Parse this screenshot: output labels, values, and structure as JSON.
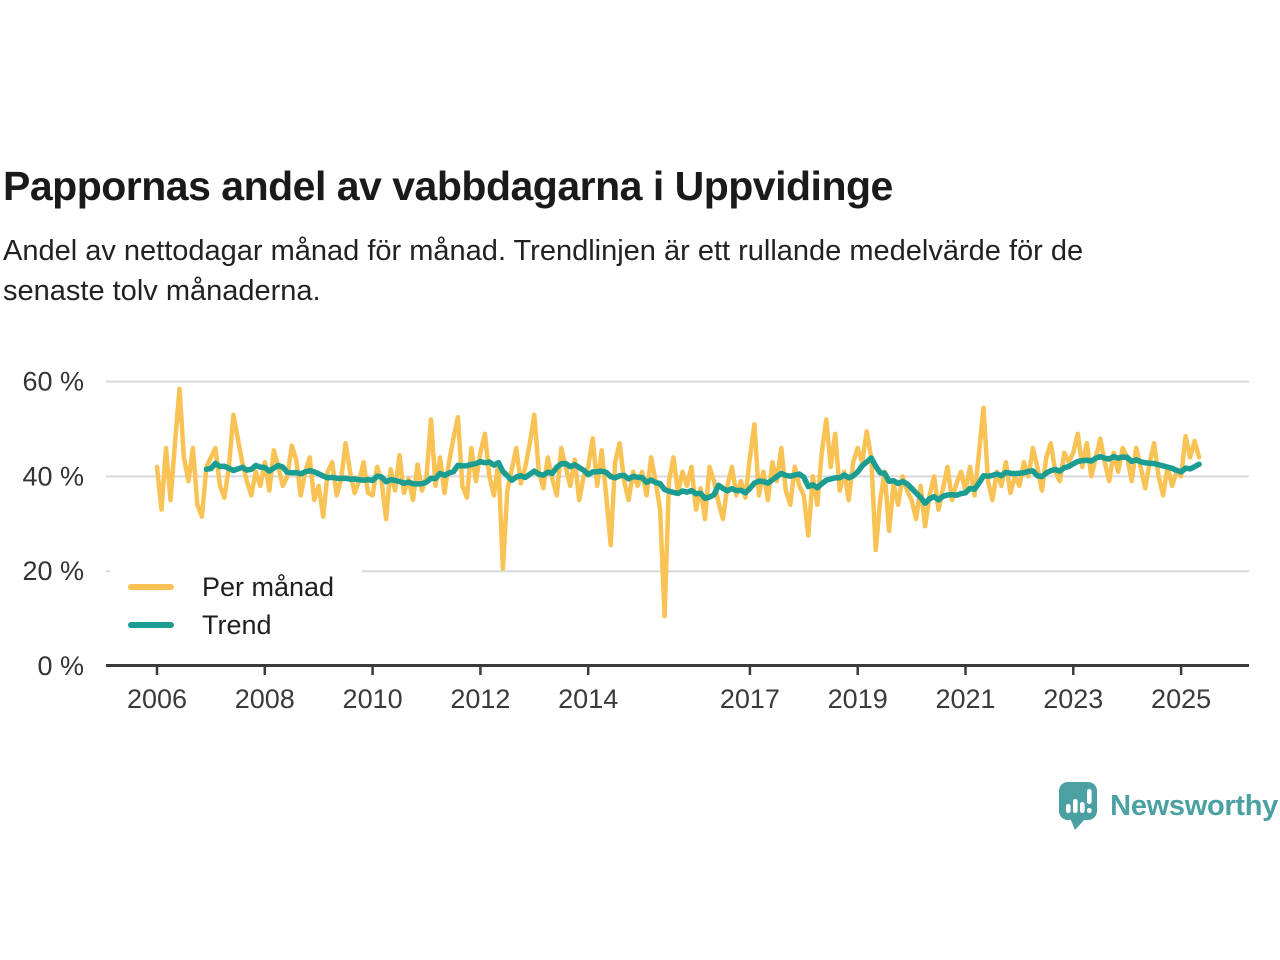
{
  "header": {
    "title": "Pappornas andel av vabbdagarna i Uppvidinge",
    "subtitle_line1": "Andel av nettodagar månad för månad. Trendlinjen är ett rullande medelvärde för de",
    "subtitle_line2": "senaste tolv månaderna."
  },
  "footer": {
    "brand": "Newsworthy"
  },
  "chart_data": {
    "type": "line",
    "title": "Pappornas andel av vabbdagarna i Uppvidinge",
    "subtitle": "Andel av nettodagar månad för månad. Trendlinjen är ett rullande medelvärde för de senaste tolv månaderna.",
    "unit": "%",
    "frequency": "monthly",
    "x_start": "2006-01",
    "x_end": "2025-05",
    "ylim": [
      0,
      62
    ],
    "grid": "horizontal",
    "legend_position": "inside-bottom-left",
    "axis_color": "#3a3a3a",
    "grid_color": "#d9d9d9",
    "label_color": "#333333",
    "yticks": [
      {
        "value": 0,
        "label": "0 %"
      },
      {
        "value": 20,
        "label": "20 %"
      },
      {
        "value": 40,
        "label": "40 %"
      },
      {
        "value": 60,
        "label": "60 %"
      }
    ],
    "xticks": [
      {
        "value": 2006,
        "label": "2006"
      },
      {
        "value": 2008,
        "label": "2008"
      },
      {
        "value": 2010,
        "label": "2010"
      },
      {
        "value": 2012,
        "label": "2012"
      },
      {
        "value": 2014,
        "label": "2014"
      },
      {
        "value": 2017,
        "label": "2017"
      },
      {
        "value": 2019,
        "label": "2019"
      },
      {
        "value": 2021,
        "label": "2021"
      },
      {
        "value": 2023,
        "label": "2023"
      },
      {
        "value": 2025,
        "label": "2025"
      }
    ],
    "series": [
      {
        "name": "Per månad",
        "color": "#F9C254",
        "values": [
          42,
          33,
          46,
          35,
          47,
          58.5,
          44,
          39,
          46,
          34,
          31.5,
          42,
          44,
          46,
          38,
          35.5,
          42,
          53,
          48,
          43,
          39,
          36,
          41,
          38,
          43,
          37,
          45.5,
          42,
          38,
          40,
          46.5,
          43.5,
          36,
          41,
          44,
          35,
          38,
          31.5,
          41,
          43,
          36,
          39.5,
          47,
          41,
          36.5,
          39,
          43,
          36.5,
          36,
          42,
          39,
          31,
          41.5,
          37,
          44.5,
          36.5,
          39.5,
          35,
          42.5,
          37,
          40,
          52,
          38,
          44,
          36.5,
          43,
          48,
          52.5,
          38,
          35.5,
          46,
          39,
          45,
          49,
          40,
          36,
          43,
          20.5,
          37,
          41.5,
          46,
          38.5,
          42,
          47,
          53,
          41,
          37.5,
          44,
          39.5,
          36,
          46,
          42,
          38,
          43.5,
          35,
          40,
          42,
          48,
          38,
          45.5,
          36,
          25.5,
          43,
          47,
          39,
          35,
          41,
          38,
          41,
          36,
          44,
          39,
          33,
          10.5,
          39,
          44,
          36.5,
          41,
          38,
          42,
          33,
          37.5,
          31,
          42,
          39,
          34.5,
          31,
          38,
          42,
          36,
          39,
          35.5,
          44,
          51,
          36,
          41,
          35,
          43,
          39,
          46,
          37,
          34,
          42,
          38,
          36,
          27.5,
          40,
          34,
          45,
          52,
          42,
          49,
          37,
          41,
          35,
          43,
          46,
          43,
          49.5,
          44,
          24.5,
          35,
          41,
          28.5,
          38.5,
          34,
          40,
          37,
          35,
          31,
          38,
          29.5,
          36,
          40,
          33,
          37.5,
          42,
          35,
          38.5,
          41,
          37,
          42,
          36,
          45,
          54.5,
          39,
          35,
          41,
          38,
          43,
          36.5,
          40,
          38,
          43,
          40,
          46,
          42,
          37,
          44,
          47,
          41,
          39,
          45,
          43,
          45,
          49,
          42,
          47,
          40,
          44,
          48,
          43,
          39,
          45,
          41,
          46,
          44,
          39,
          46,
          42,
          37.5,
          43,
          47,
          40,
          36,
          42,
          38,
          41,
          40,
          48.5,
          44,
          47.5,
          44
        ]
      },
      {
        "name": "Trend",
        "color": "#1B9D92",
        "derived": "rolling_mean",
        "window_months": 12
      }
    ]
  }
}
